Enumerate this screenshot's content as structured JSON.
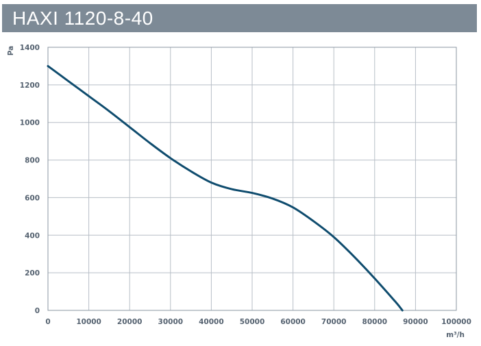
{
  "title": "HAXI 1120-8-40",
  "colors": {
    "title_bg": "#7d8a96",
    "curve": "#0f4c6e",
    "grid": "#b7bec6",
    "frame": "#8a95a0",
    "text": "#556270"
  },
  "chart_data": {
    "type": "line",
    "title": "HAXI 1120-8-40",
    "xlabel": "m³/h",
    "ylabel": "Pa",
    "xlim": [
      0,
      100000
    ],
    "ylim": [
      0,
      1400
    ],
    "x_ticks": [
      0,
      10000,
      20000,
      30000,
      40000,
      50000,
      60000,
      70000,
      80000,
      90000,
      100000
    ],
    "y_ticks": [
      0,
      200,
      400,
      600,
      800,
      1000,
      1200,
      1400
    ],
    "grid": true,
    "series": [
      {
        "x": [
          0,
          5000,
          10000,
          15000,
          20000,
          25000,
          30000,
          35000,
          40000,
          45000,
          50000,
          55000,
          60000,
          65000,
          70000,
          75000,
          80000,
          85000,
          86800
        ],
        "y": [
          1300,
          1220,
          1140,
          1060,
          975,
          890,
          810,
          740,
          680,
          645,
          625,
          595,
          548,
          475,
          390,
          285,
          170,
          48,
          0
        ]
      }
    ]
  }
}
